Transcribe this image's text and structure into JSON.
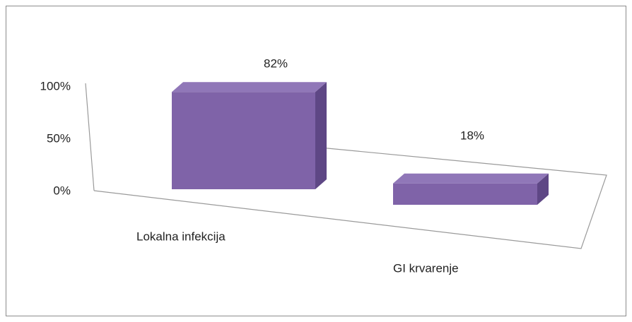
{
  "chart_data": {
    "type": "bar3d",
    "categories": [
      "Lokalna infekcija",
      "GI krvarenje"
    ],
    "values": [
      82,
      18
    ],
    "value_labels": [
      "82%",
      "18%"
    ],
    "color": "#7f63a8",
    "ylim": [
      0,
      100
    ],
    "yticks": [
      {
        "value": 0,
        "label": "0%"
      },
      {
        "value": 50,
        "label": "50%"
      },
      {
        "value": 100,
        "label": "100%"
      }
    ]
  }
}
